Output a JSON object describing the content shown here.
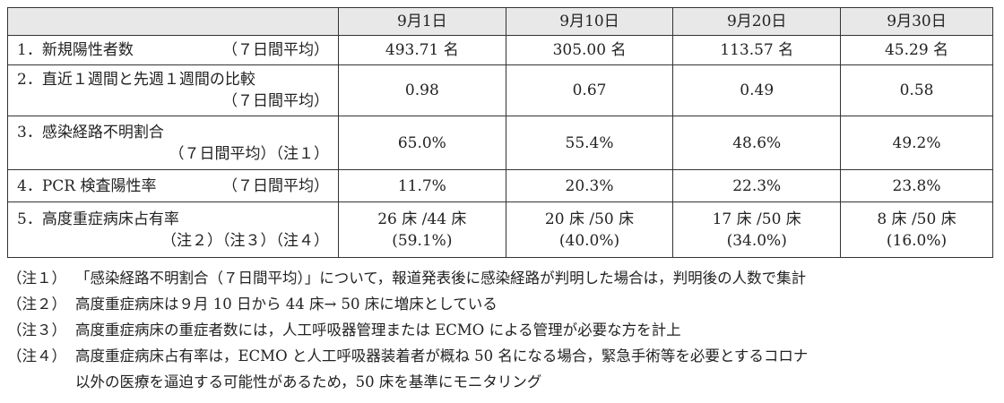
{
  "table": {
    "header": [
      "9月1日",
      "9月10日",
      "9月20日",
      "9月30日"
    ],
    "rows": [
      {
        "label": [
          [
            "1．新規陽性者数",
            "（７日間平均）"
          ]
        ],
        "cells": [
          [
            "493.71 名"
          ],
          [
            "305.00 名"
          ],
          [
            "113.57 名"
          ],
          [
            "45.29 名"
          ]
        ]
      },
      {
        "label": [
          [
            "2．直近１週間と先週１週間の比較"
          ],
          [
            "（７日間平均）"
          ]
        ],
        "cells": [
          [
            "0.98"
          ],
          [
            "0.67"
          ],
          [
            "0.49"
          ],
          [
            "0.58"
          ]
        ]
      },
      {
        "label": [
          [
            "3．感染経路不明割合"
          ],
          [
            "（７日間平均）（注１）"
          ]
        ],
        "cells": [
          [
            "65.0%"
          ],
          [
            "55.4%"
          ],
          [
            "48.6%"
          ],
          [
            "49.2%"
          ]
        ]
      },
      {
        "label": [
          [
            "4．PCR 検査陽性率",
            "（７日間平均）"
          ]
        ],
        "cells": [
          [
            "11.7%"
          ],
          [
            "20.3%"
          ],
          [
            "22.3%"
          ],
          [
            "23.8%"
          ]
        ]
      },
      {
        "label": [
          [
            "5．高度重症病床占有率"
          ],
          [
            "（注２）（注３）（注４）"
          ]
        ],
        "cells": [
          [
            "26 床 /44 床",
            "(59.1%)"
          ],
          [
            "20 床 /50 床",
            "(40.0%)"
          ],
          [
            "17 床 /50 床",
            "(34.0%)"
          ],
          [
            "8 床 /50 床",
            "(16.0%)"
          ]
        ]
      }
    ]
  },
  "notes": [
    {
      "mark": "（注１）",
      "text": [
        "「感染経路不明割合（７日間平均）」について，報道発表後に感染経路が判明した場合は，判明後の人数で集計"
      ]
    },
    {
      "mark": "（注２）",
      "text": [
        "高度重症病床は９月 10 日から 44 床→ 50 床に増床としている"
      ]
    },
    {
      "mark": "（注３）",
      "text": [
        "高度重症病床の重症者数には，人工呼吸器管理または ECMO による管理が必要な方を計上"
      ]
    },
    {
      "mark": "（注４）",
      "text": [
        "高度重症病床占有率は，ECMO と人工呼吸器装着者が概ね 50 名になる場合，緊急手術等を必要とするコロナ",
        "以外の医療を逼迫する可能性があるため，50 床を基準にモニタリング"
      ]
    }
  ]
}
